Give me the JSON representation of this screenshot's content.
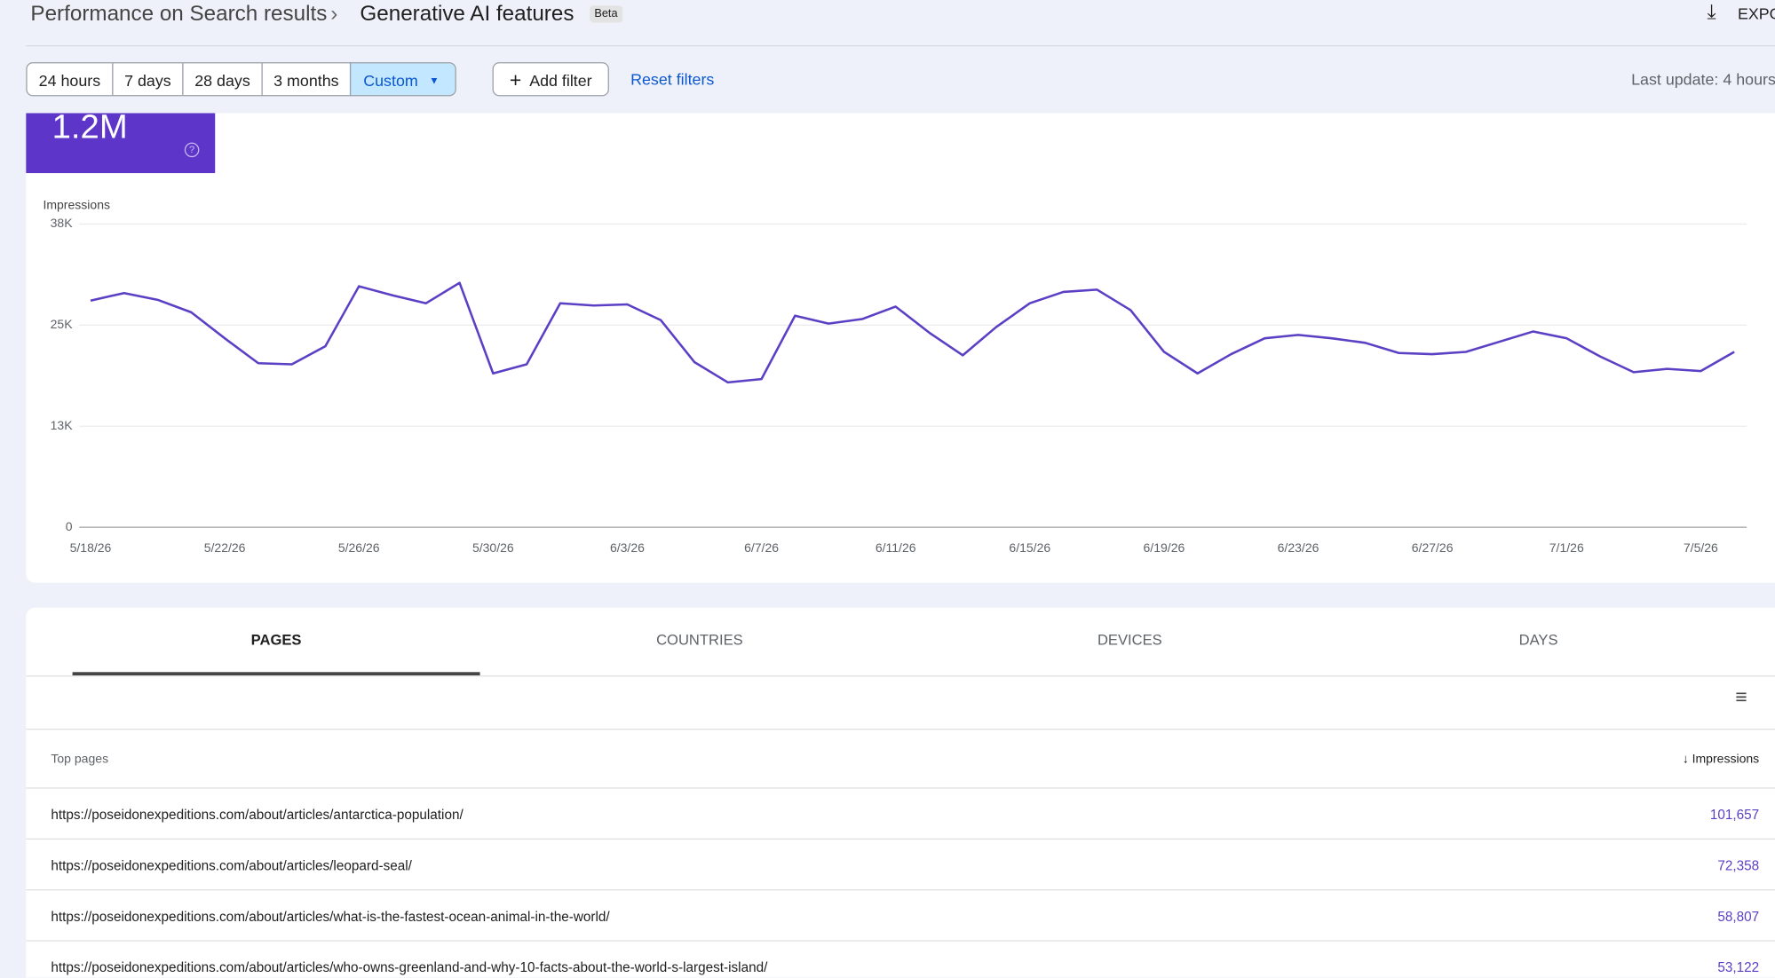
{
  "header": {
    "breadcrumb": "Performance on Search results",
    "title": "Generative AI features",
    "badge": "Beta",
    "export": "EXPORT"
  },
  "filters": {
    "ranges": [
      "24 hours",
      "7 days",
      "28 days",
      "3 months",
      "Custom"
    ],
    "add_filter": "Add filter",
    "reset": "Reset filters",
    "last_update": "Last update: 4 hours"
  },
  "metric": {
    "value": "1.2M"
  },
  "chart_data": {
    "type": "line",
    "y_label": "Impressions",
    "color": "#5b3fc4",
    "categories": [
      "5/18/26",
      null,
      null,
      null,
      "5/22/26",
      null,
      null,
      null,
      "5/26/26",
      null,
      null,
      null,
      "5/30/26",
      null,
      null,
      null,
      "6/3/26",
      null,
      null,
      null,
      "6/7/26",
      null,
      null,
      null,
      "6/11/26",
      null,
      null,
      null,
      "6/15/26",
      null,
      null,
      null,
      "6/19/26",
      null,
      null,
      null,
      "6/23/26",
      null,
      null,
      null,
      "6/27/26",
      null,
      null,
      null,
      "7/1/26",
      null,
      null,
      null,
      "7/5/26",
      null
    ],
    "values": [
      28400,
      29350,
      28500,
      26940,
      23680,
      20560,
      20420,
      22690,
      30200,
      29070,
      28070,
      30630,
      19280,
      20420,
      28070,
      27790,
      27930,
      25950,
      20700,
      18150,
      18570,
      26510,
      25520,
      26090,
      27650,
      24390,
      21550,
      25100,
      28070,
      29490,
      29780,
      27220,
      21980,
      19280,
      21690,
      23680,
      24100,
      23680,
      23110,
      21840,
      21690,
      21980,
      23250,
      24530,
      23680,
      21410,
      19430,
      19850,
      19570,
      21980
    ],
    "ylim": [
      0,
      38000
    ],
    "yticks": [
      0,
      {
        "value": 12667,
        "label": "13K"
      },
      {
        "value": 25333,
        "label": "25K"
      },
      {
        "value": 38000,
        "label": "38K"
      }
    ],
    "grid": true
  },
  "tabs": [
    "PAGES",
    "COUNTRIES",
    "DEVICES",
    "DAYS"
  ],
  "table": {
    "headers": [
      "Top pages",
      "Impressions"
    ],
    "rows": [
      [
        "https://poseidonexpeditions.com/about/articles/antarctica-population/",
        "101,657"
      ],
      [
        "https://poseidonexpeditions.com/about/articles/leopard-seal/",
        "72,358"
      ],
      [
        "https://poseidonexpeditions.com/about/articles/what-is-the-fastest-ocean-animal-in-the-world/",
        "58,807"
      ],
      [
        "https://poseidonexpeditions.com/about/articles/who-owns-greenland-and-why-10-facts-about-the-world-s-largest-island/",
        "53,122"
      ]
    ]
  }
}
